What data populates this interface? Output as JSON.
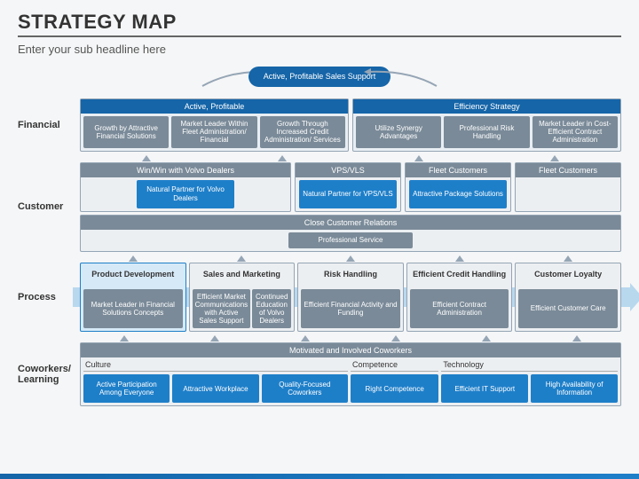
{
  "title": "Strategy Map",
  "subtitle": "Enter your sub headline here",
  "colors": {
    "primary_blue": "#1565a8",
    "bright_blue": "#1e7fc9",
    "gray": "#7a8a98",
    "panel_bg": "#e8eef3",
    "border": "#95a5b5",
    "arrow_bg": "#b8d8ee",
    "page_bg": "#f5f6f7"
  },
  "top_goal": "Active, Profitable Sales Support",
  "perspectives": {
    "financial": {
      "label": "Financial",
      "panels": [
        {
          "header": "Active, Profitable",
          "boxes": [
            "Growth by Attractive Financial Solutions",
            "Market Leader Within Fleet Administration/ Financial",
            "Growth Through Increased Credit Administration/ Services"
          ]
        },
        {
          "header": "Efficiency Strategy",
          "boxes": [
            "Utilize Synergy Advantages",
            "Professional Risk Handling",
            "Market Leader in Cost-Efficient Contract Administration"
          ]
        }
      ]
    },
    "customer": {
      "label": "Customer",
      "top_row": [
        {
          "header": "Win/Win with Volvo Dealers",
          "boxes": [
            {
              "text": "Natural Partner for Volvo Dealers",
              "style": "blue"
            }
          ],
          "flex": 2
        },
        {
          "header": "VPS/VLS",
          "boxes": [
            {
              "text": "Natural Partner for VPS/VLS",
              "style": "blue"
            }
          ],
          "flex": 1
        },
        {
          "header": "Fleet Customers",
          "boxes": [
            {
              "text": "Attractive Package Solutions",
              "style": "blue"
            }
          ],
          "flex": 1
        },
        {
          "header": "Fleet Customers",
          "boxes": [],
          "flex": 1
        }
      ],
      "bottom": {
        "header": "Close Customer Relations",
        "boxes": [
          "Professional Service"
        ]
      }
    },
    "process": {
      "label": "Process",
      "columns": [
        {
          "header": "Product Development",
          "active": true,
          "boxes": [
            {
              "text": "Market Leader in Financial Solutions Concepts",
              "style": "gray"
            }
          ]
        },
        {
          "header": "Sales and Marketing",
          "boxes": [
            {
              "text": "Efficient Market Communications with Active Sales Support",
              "style": "gray"
            },
            {
              "text": "Continued Education of Volvo Dealers",
              "style": "gray"
            }
          ]
        },
        {
          "header": "Risk Handling",
          "boxes": [
            {
              "text": "Efficient Financial Activity and Funding",
              "style": "gray"
            }
          ]
        },
        {
          "header": "Efficient Credit Handling",
          "boxes": [
            {
              "text": "Efficient Contract Administration",
              "style": "gray"
            }
          ]
        },
        {
          "header": "Customer Loyalty",
          "boxes": [
            {
              "text": "Efficient Customer Care",
              "style": "gray"
            }
          ]
        }
      ]
    },
    "learning": {
      "label": "Coworkers/ Learning",
      "header": "Motivated and Involved Coworkers",
      "sections": [
        {
          "label": "Culture",
          "flex": 3,
          "boxes": [
            "Active Participation Among Everyone",
            "Attractive Workplace",
            "Quality-Focused Coworkers"
          ]
        },
        {
          "label": "Competence",
          "flex": 1,
          "boxes": [
            "Right Competence"
          ]
        },
        {
          "label": "Technology",
          "flex": 2,
          "boxes": [
            "Efficient IT Support",
            "High Availability of Information"
          ]
        }
      ]
    }
  }
}
